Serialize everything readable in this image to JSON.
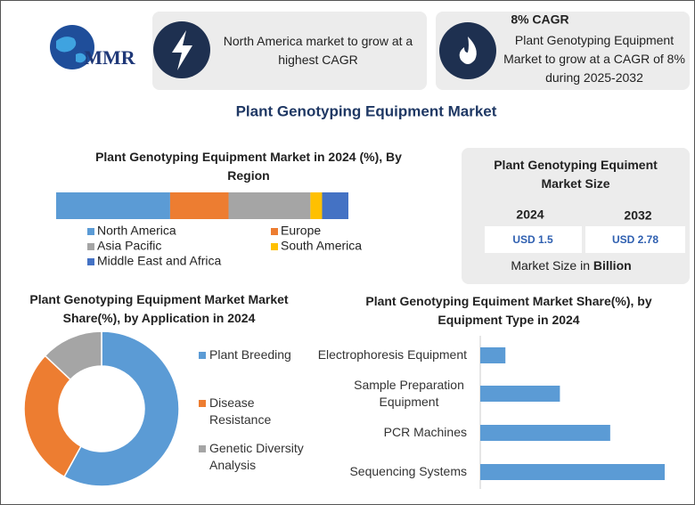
{
  "header": {
    "logo": "MMR",
    "card1_text": "North America market to grow at a highest CAGR",
    "card2_title": "8% CAGR",
    "card2_text": "Plant Genotyping Equipment Market to grow at a CAGR of 8% during 2025-2032"
  },
  "title": "Plant Genotyping Equipment Market",
  "chart_data": [
    {
      "type": "stacked-bar",
      "title": "Plant Genotyping Equipment Market in 2024 (%), By Region",
      "series": [
        {
          "name": "North America",
          "color": "#5b9bd5",
          "values": [
            39
          ]
        },
        {
          "name": "Europe",
          "color": "#ed7d31",
          "values": [
            20
          ]
        },
        {
          "name": "Asia Pacific",
          "color": "#a5a5a5",
          "values": [
            28
          ]
        },
        {
          "name": "South America",
          "color": "#ffc000",
          "values": [
            4
          ]
        },
        {
          "name": "Middle East and Africa",
          "color": "#4472c4",
          "values": [
            9
          ]
        }
      ]
    },
    {
      "type": "donut",
      "title": "Plant Genotyping Equipment Market Market Share(%), by Application in 2024",
      "categories": [
        "Plant Breeding",
        "Disease Resistance",
        "Genetic Diversity Analysis"
      ],
      "values": [
        58,
        29,
        13
      ],
      "colors": [
        "#5b9bd5",
        "#ed7d31",
        "#a5a5a5"
      ]
    },
    {
      "type": "hbar",
      "title": "Plant Genotyping Equiment Market Share(%), by Equipment Type in 2024",
      "categories": [
        "Electrophoresis Equipment",
        "Sample Preparation Equipment",
        "PCR Machines",
        "Sequencing Systems"
      ],
      "values": [
        6,
        19,
        31,
        44
      ],
      "color": "#5b9bd5"
    }
  ],
  "market_size": {
    "title": "Plant Genotyping Equiment Market Size",
    "years": [
      "2024",
      "2032"
    ],
    "values": [
      "USD 1.5",
      "USD 2.78"
    ],
    "label": "Market Size in",
    "unit": "Billion"
  }
}
